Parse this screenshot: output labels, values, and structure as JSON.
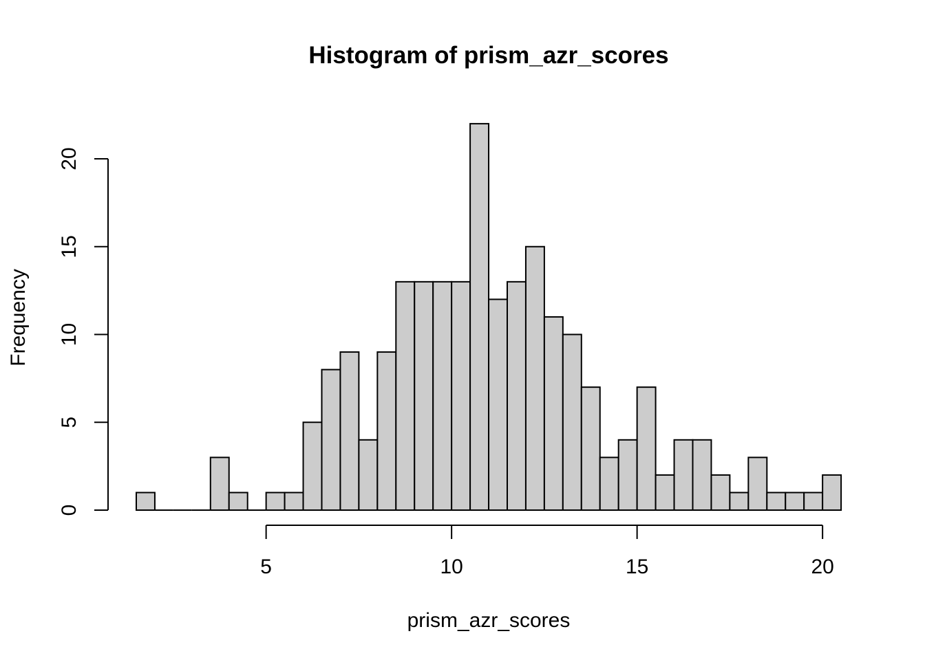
{
  "chart_data": {
    "type": "bar",
    "title": "Histogram of prism_azr_scores",
    "xlabel": "prism_azr_scores",
    "ylabel": "Frequency",
    "bin_width": 0.5,
    "bins": [
      {
        "start": 1.5,
        "end": 2.0,
        "count": 1
      },
      {
        "start": 2.0,
        "end": 2.5,
        "count": 0
      },
      {
        "start": 2.5,
        "end": 3.0,
        "count": 0
      },
      {
        "start": 3.0,
        "end": 3.5,
        "count": 0
      },
      {
        "start": 3.5,
        "end": 4.0,
        "count": 3
      },
      {
        "start": 4.0,
        "end": 4.5,
        "count": 1
      },
      {
        "start": 4.5,
        "end": 5.0,
        "count": 0
      },
      {
        "start": 5.0,
        "end": 5.5,
        "count": 1
      },
      {
        "start": 5.5,
        "end": 6.0,
        "count": 1
      },
      {
        "start": 6.0,
        "end": 6.5,
        "count": 5
      },
      {
        "start": 6.5,
        "end": 7.0,
        "count": 8
      },
      {
        "start": 7.0,
        "end": 7.5,
        "count": 9
      },
      {
        "start": 7.5,
        "end": 8.0,
        "count": 4
      },
      {
        "start": 8.0,
        "end": 8.5,
        "count": 9
      },
      {
        "start": 8.5,
        "end": 9.0,
        "count": 13
      },
      {
        "start": 9.0,
        "end": 9.5,
        "count": 13
      },
      {
        "start": 9.5,
        "end": 10.0,
        "count": 13
      },
      {
        "start": 10.0,
        "end": 10.5,
        "count": 13
      },
      {
        "start": 10.5,
        "end": 11.0,
        "count": 22
      },
      {
        "start": 11.0,
        "end": 11.5,
        "count": 12
      },
      {
        "start": 11.5,
        "end": 12.0,
        "count": 13
      },
      {
        "start": 12.0,
        "end": 12.5,
        "count": 15
      },
      {
        "start": 12.5,
        "end": 13.0,
        "count": 11
      },
      {
        "start": 13.0,
        "end": 13.5,
        "count": 10
      },
      {
        "start": 13.5,
        "end": 14.0,
        "count": 7
      },
      {
        "start": 14.0,
        "end": 14.5,
        "count": 3
      },
      {
        "start": 14.5,
        "end": 15.0,
        "count": 4
      },
      {
        "start": 15.0,
        "end": 15.5,
        "count": 7
      },
      {
        "start": 15.5,
        "end": 16.0,
        "count": 2
      },
      {
        "start": 16.0,
        "end": 16.5,
        "count": 4
      },
      {
        "start": 16.5,
        "end": 17.0,
        "count": 4
      },
      {
        "start": 17.0,
        "end": 17.5,
        "count": 2
      },
      {
        "start": 17.5,
        "end": 18.0,
        "count": 1
      },
      {
        "start": 18.0,
        "end": 18.5,
        "count": 3
      },
      {
        "start": 18.5,
        "end": 19.0,
        "count": 1
      },
      {
        "start": 19.0,
        "end": 19.5,
        "count": 1
      },
      {
        "start": 19.5,
        "end": 20.0,
        "count": 1
      },
      {
        "start": 20.0,
        "end": 20.5,
        "count": 2
      }
    ],
    "xticks": [
      5,
      10,
      15,
      20
    ],
    "yticks": [
      0,
      5,
      10,
      15,
      20
    ],
    "xlim": [
      1.5,
      20.5
    ],
    "ylim": [
      0,
      22
    ],
    "grid": false,
    "bar_color": "#cccccc",
    "edge_color": "#000000"
  }
}
